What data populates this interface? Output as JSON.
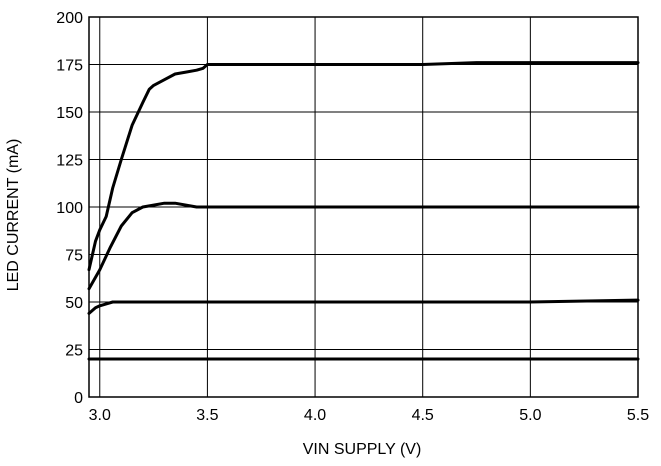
{
  "chart_data": {
    "type": "line",
    "title": "",
    "xlabel": "VIN SUPPLY (V)",
    "ylabel": "LED CURRENT (mA)",
    "xlim": [
      2.95,
      5.5
    ],
    "ylim": [
      0,
      200
    ],
    "x_ticks": [
      "3.0",
      "3.5",
      "4.0",
      "4.5",
      "5.0",
      "5.5"
    ],
    "x_tick_values": [
      3.0,
      3.5,
      4.0,
      4.5,
      5.0,
      5.5
    ],
    "y_ticks": [
      "0",
      "25",
      "50",
      "75",
      "100",
      "125",
      "150",
      "175",
      "200"
    ],
    "y_tick_values": [
      0,
      25,
      50,
      75,
      100,
      125,
      150,
      175,
      200
    ],
    "grid": true,
    "line_color": "#000000",
    "series": [
      {
        "x": [
          2.95,
          2.98,
          3.0,
          3.03,
          3.06,
          3.1,
          3.15,
          3.2,
          3.23,
          3.25,
          3.3,
          3.35,
          3.4,
          3.45,
          3.48,
          3.5,
          3.6,
          4.0,
          4.5,
          4.75,
          5.0,
          5.5
        ],
        "y": [
          67,
          82,
          88,
          95,
          110,
          125,
          143,
          155,
          162,
          164,
          167,
          170,
          171,
          172,
          173,
          175,
          175,
          175,
          175,
          176,
          176,
          176
        ]
      },
      {
        "x": [
          2.95,
          3.0,
          3.05,
          3.1,
          3.15,
          3.2,
          3.25,
          3.3,
          3.35,
          3.4,
          3.45,
          3.5,
          4.0,
          4.5,
          5.0,
          5.5
        ],
        "y": [
          57,
          67,
          79,
          90,
          97,
          100,
          101,
          102,
          102,
          101,
          100,
          100,
          100,
          100,
          100,
          100
        ]
      },
      {
        "x": [
          2.95,
          2.98,
          3.0,
          3.03,
          3.06,
          3.1,
          3.5,
          4.0,
          4.5,
          5.0,
          5.5
        ],
        "y": [
          44,
          47,
          48,
          49,
          50,
          50,
          50,
          50,
          50,
          50,
          51
        ]
      },
      {
        "x": [
          2.95,
          5.5
        ],
        "y": [
          20,
          20
        ]
      }
    ]
  }
}
